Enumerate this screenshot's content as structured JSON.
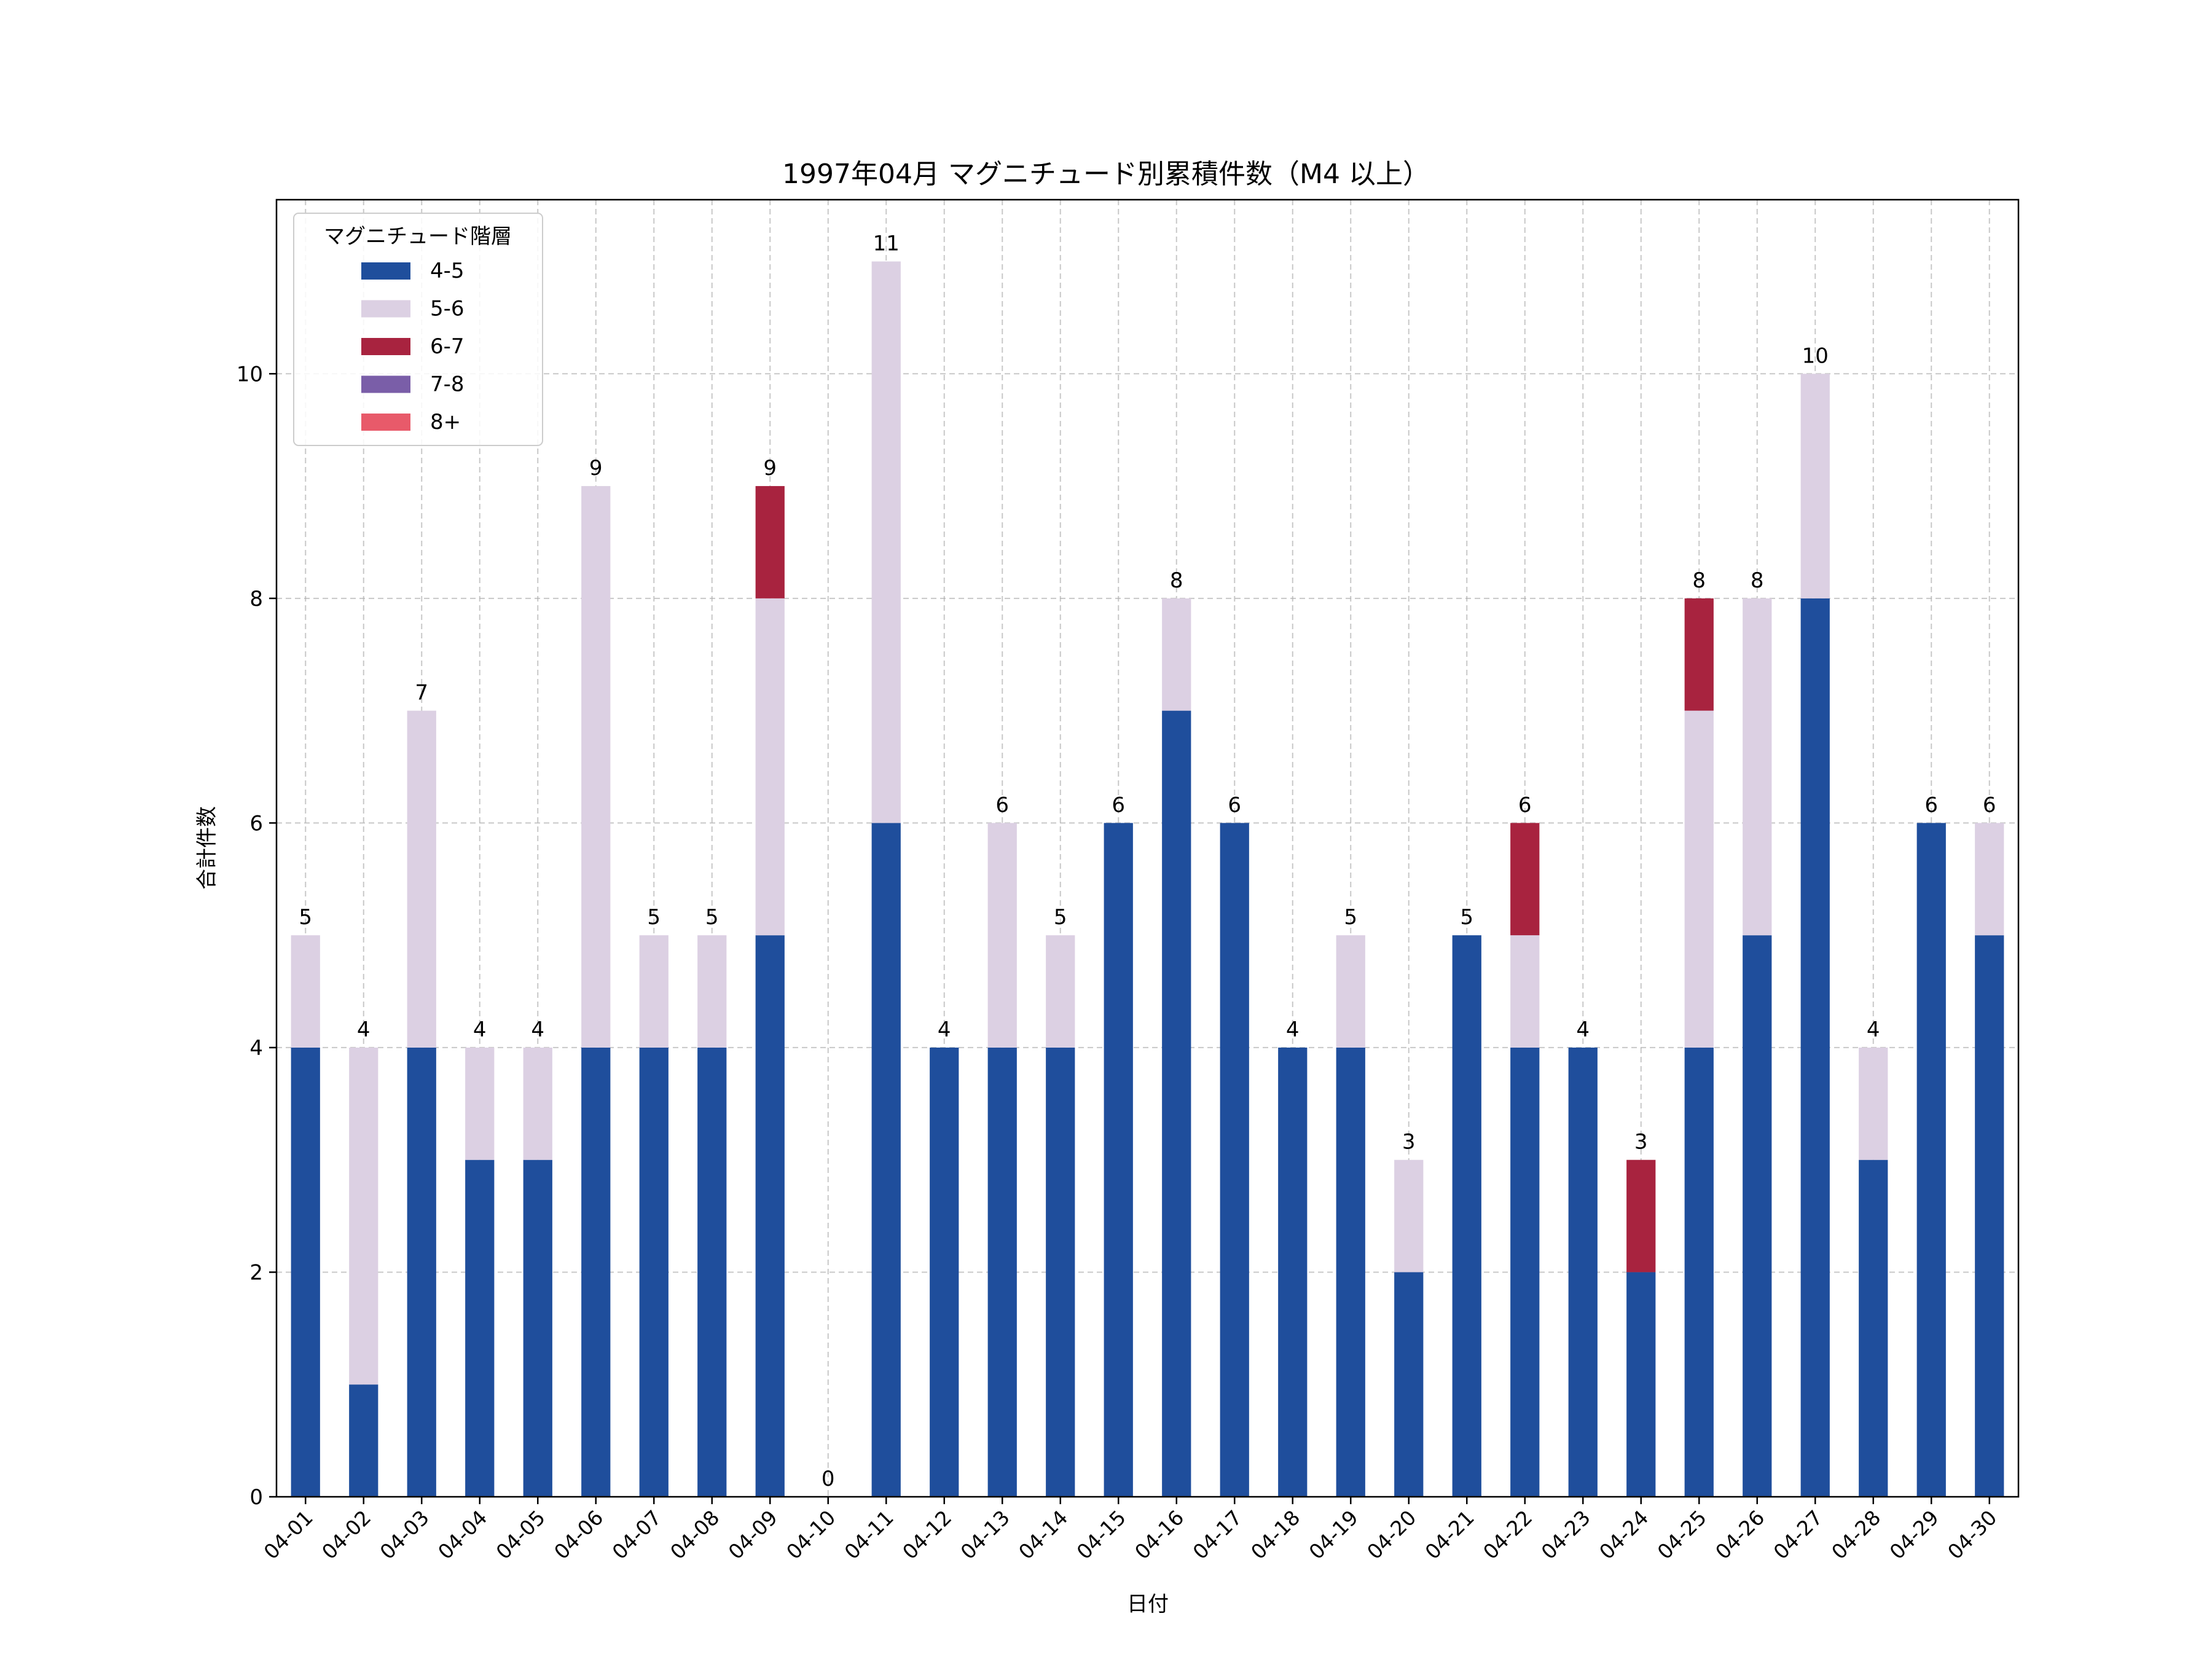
{
  "chart_data": {
    "type": "bar",
    "stacked": true,
    "title": "1997年04月 マグニチュード別累積件数（M4 以上）",
    "xlabel": "日付",
    "ylabel": "合計件数",
    "ylim": [
      0,
      11.55
    ],
    "yticks": [
      0,
      2,
      4,
      6,
      8,
      10
    ],
    "grid": true,
    "legend": {
      "title": "マグニチュード階層",
      "placement": "top-left"
    },
    "categories": [
      "04-01",
      "04-02",
      "04-03",
      "04-04",
      "04-05",
      "04-06",
      "04-07",
      "04-08",
      "04-09",
      "04-10",
      "04-11",
      "04-12",
      "04-13",
      "04-14",
      "04-15",
      "04-16",
      "04-17",
      "04-18",
      "04-19",
      "04-20",
      "04-21",
      "04-22",
      "04-23",
      "04-24",
      "04-25",
      "04-26",
      "04-27",
      "04-28",
      "04-29",
      "04-30"
    ],
    "series": [
      {
        "name": "4-5",
        "color": "#1f4e9c",
        "values": [
          4,
          1,
          4,
          3,
          3,
          4,
          4,
          4,
          5,
          0,
          6,
          4,
          4,
          4,
          6,
          7,
          6,
          4,
          4,
          2,
          5,
          4,
          4,
          2,
          4,
          5,
          8,
          3,
          6,
          5
        ]
      },
      {
        "name": "5-6",
        "color": "#dcd0e3",
        "values": [
          1,
          3,
          3,
          1,
          1,
          5,
          1,
          1,
          3,
          0,
          5,
          0,
          2,
          1,
          0,
          1,
          0,
          0,
          1,
          1,
          0,
          1,
          0,
          0,
          3,
          3,
          2,
          1,
          0,
          1
        ]
      },
      {
        "name": "6-7",
        "color": "#a8233f",
        "values": [
          0,
          0,
          0,
          0,
          0,
          0,
          0,
          0,
          1,
          0,
          0,
          0,
          0,
          0,
          0,
          0,
          0,
          0,
          0,
          0,
          0,
          1,
          0,
          1,
          1,
          0,
          0,
          0,
          0,
          0
        ]
      },
      {
        "name": "7-8",
        "color": "#7a5ea8",
        "values": [
          0,
          0,
          0,
          0,
          0,
          0,
          0,
          0,
          0,
          0,
          0,
          0,
          0,
          0,
          0,
          0,
          0,
          0,
          0,
          0,
          0,
          0,
          0,
          0,
          0,
          0,
          0,
          0,
          0,
          0
        ]
      },
      {
        "name": "8+",
        "color": "#e85a6a",
        "values": [
          0,
          0,
          0,
          0,
          0,
          0,
          0,
          0,
          0,
          0,
          0,
          0,
          0,
          0,
          0,
          0,
          0,
          0,
          0,
          0,
          0,
          0,
          0,
          0,
          0,
          0,
          0,
          0,
          0,
          0
        ]
      }
    ],
    "totals": [
      5,
      4,
      7,
      4,
      4,
      9,
      5,
      5,
      9,
      0,
      11,
      4,
      6,
      5,
      6,
      8,
      6,
      4,
      5,
      3,
      5,
      6,
      4,
      3,
      8,
      8,
      10,
      4,
      6,
      6
    ]
  }
}
